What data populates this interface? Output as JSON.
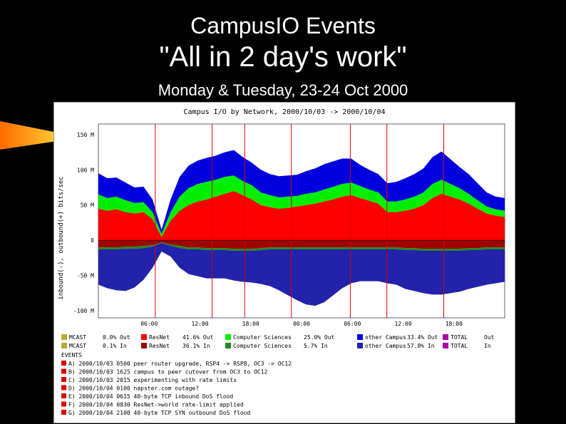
{
  "slide": {
    "title": "CampusIO Events",
    "subtitle": "\"All in 2 day's work\"",
    "date_line": "Monday & Tuesday, 23-24 Oct 2000"
  },
  "chart_data": {
    "type": "area",
    "title": "Campus I/O by Network, 2000/10/03 -> 2000/10/04",
    "ylabel": "inbound(-), outbound(+) bits/sec",
    "ylim": [
      -110,
      165
    ],
    "y_ticks": [
      "150 M",
      "100 M",
      "50 M",
      "0",
      "-50 M",
      "-100 M"
    ],
    "x_ticks": [
      "06:00",
      "12:00",
      "18:00",
      "00:00",
      "06:00",
      "12:00",
      "18:00"
    ],
    "colors": {
      "resnet": "#ff0000",
      "cs": "#00ee00",
      "other": "#0000dd",
      "resnet_in": "#a00000",
      "cs_in": "#228822",
      "other_in": "#2222aa",
      "mcast": "#bbaa33",
      "total": "#aa00aa",
      "event": "#dd0000"
    },
    "series": [
      {
        "name": "ResNet",
        "values": [
          45,
          42,
          44,
          40,
          38,
          40,
          30,
          5,
          28,
          42,
          50,
          55,
          58,
          62,
          66,
          70,
          64,
          58,
          50,
          47,
          45,
          46,
          48,
          50,
          52,
          55,
          58,
          62,
          64,
          60,
          56,
          52,
          40,
          40,
          42,
          45,
          50,
          60,
          66,
          62,
          58,
          52,
          45,
          38,
          35,
          33
        ]
      },
      {
        "name": "Computer Sciences",
        "values": [
          20,
          18,
          18,
          17,
          15,
          14,
          10,
          4,
          12,
          20,
          24,
          25,
          25,
          24,
          24,
          22,
          20,
          20,
          18,
          17,
          16,
          16,
          15,
          16,
          16,
          17,
          18,
          18,
          18,
          17,
          16,
          16,
          15,
          15,
          16,
          17,
          18,
          20,
          20,
          18,
          16,
          14,
          12,
          10,
          9,
          9
        ]
      },
      {
        "name": "other Campus",
        "values": [
          30,
          28,
          27,
          25,
          22,
          22,
          18,
          6,
          18,
          28,
          32,
          33,
          34,
          34,
          35,
          36,
          34,
          32,
          32,
          30,
          30,
          30,
          30,
          32,
          34,
          36,
          36,
          36,
          34,
          30,
          28,
          26,
          26,
          28,
          30,
          32,
          34,
          38,
          40,
          35,
          30,
          28,
          24,
          20,
          18,
          18
        ]
      },
      {
        "name": "ResNet in",
        "values": [
          -10,
          -10,
          -10,
          -9,
          -9,
          -8,
          -7,
          -3,
          -6,
          -8,
          -10,
          -10,
          -11,
          -11,
          -11,
          -12,
          -12,
          -12,
          -11,
          -10,
          -10,
          -10,
          -10,
          -10,
          -10,
          -10,
          -10,
          -10,
          -10,
          -10,
          -10,
          -10,
          -10,
          -10,
          -11,
          -11,
          -12,
          -12,
          -12,
          -12,
          -12,
          -11,
          -11,
          -10,
          -10,
          -10
        ]
      },
      {
        "name": "Computer Sciences in",
        "values": [
          -3,
          -3,
          -3,
          -3,
          -3,
          -3,
          -2,
          -1,
          -2,
          -3,
          -3,
          -3,
          -3,
          -3,
          -3,
          -3,
          -3,
          -3,
          -3,
          -3,
          -3,
          -3,
          -3,
          -3,
          -3,
          -3,
          -3,
          -3,
          -3,
          -3,
          -3,
          -3,
          -3,
          -3,
          -3,
          -3,
          -3,
          -3,
          -3,
          -3,
          -3,
          -3,
          -3,
          -3,
          -3,
          -3
        ]
      },
      {
        "name": "other Campus in",
        "values": [
          -50,
          -55,
          -58,
          -60,
          -55,
          -45,
          -30,
          -12,
          -15,
          -28,
          -35,
          -38,
          -40,
          -40,
          -40,
          -42,
          -44,
          -45,
          -48,
          -52,
          -58,
          -65,
          -72,
          -78,
          -80,
          -75,
          -65,
          -55,
          -48,
          -45,
          -45,
          -45,
          -48,
          -50,
          -55,
          -58,
          -60,
          -62,
          -62,
          -60,
          -58,
          -55,
          -52,
          -50,
          -48,
          -46
        ]
      }
    ],
    "event_markers": [
      "A",
      "B",
      "C",
      "D",
      "E",
      "F",
      "G"
    ],
    "legend_rows": [
      [
        "MCAST",
        "0.0% Out",
        "ResNet",
        "41.6% Out",
        "Computer Sciences",
        "25.0% Out",
        "other Campus",
        "33.4% Out",
        "TOTAL",
        "Out"
      ],
      [
        "MCAST",
        "0.1% In",
        "ResNet",
        "36.1% In",
        "Computer Sciences",
        "5.7% In",
        "other Campus",
        "57.8% In",
        "TOTAL",
        "In"
      ]
    ],
    "events_heading": "EVENTS",
    "events": [
      "A) 2000/10/03 0500 peer router upgrade, RSP4 -> RSP8, OC3 -> OC12",
      "B) 2000/10/03 1625 campus to peer cutover from OC3 to OC12",
      "C) 2000/10/03 2015 experimenting with rate limits",
      "D) 2000/10/04 0100 napster.com outage?",
      "E) 2000/10/04 0615 40-byte TCP inbound DoS flood",
      "F) 2000/10/04 0830 ResNet->world rate-limit applied",
      "G) 2000/10/04 2100 40-byte TCP SYN outbound DoS flood"
    ]
  }
}
